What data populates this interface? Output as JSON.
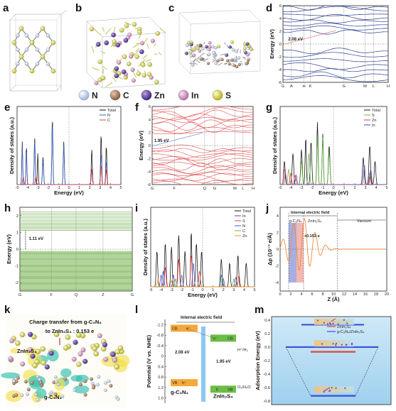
{
  "panel_labels": {
    "a": "a",
    "b": "b",
    "c": "c",
    "d": "d",
    "e": "e",
    "f": "f",
    "g": "g",
    "h": "h",
    "i": "i",
    "j": "j",
    "k": "k",
    "l": "l",
    "m": "m"
  },
  "atom_legend": [
    {
      "label": "N",
      "color": "#c9d7ee"
    },
    {
      "label": "C",
      "color": "#a8795a"
    },
    {
      "label": "Zn",
      "color": "#5b3a98"
    },
    {
      "label": "In",
      "color": "#d9a2c9"
    },
    {
      "label": "S",
      "color": "#e4e256"
    }
  ],
  "band_d": {
    "ylabel": "Energy (eV)",
    "yticks": [
      "6",
      "4",
      "2",
      "0",
      "-2",
      "-4",
      "-6"
    ],
    "kpoints": [
      "G",
      "A",
      "H",
      "K",
      "G",
      "M",
      "L",
      "H"
    ],
    "gap": "2.08 eV",
    "line_color": "#2b3d8f",
    "ylim": [
      -6,
      6
    ]
  },
  "band_f": {
    "ylabel": "Energy (eV)",
    "yticks": [
      "6",
      "4",
      "2",
      "0",
      "-2",
      "-4",
      "-6"
    ],
    "kpoints": [
      "G",
      "F",
      "Q",
      "G",
      "M",
      "L",
      "H"
    ],
    "gap": "1.95 eV",
    "line_color": "#e05050",
    "ylim": [
      -6,
      6
    ]
  },
  "band_h": {
    "ylabel": "Energy (eV)",
    "yticks": [
      "2",
      "1",
      "0",
      "-1",
      "-2"
    ],
    "kpoints": [
      "G",
      "F",
      "Q",
      "Z",
      "G"
    ],
    "gap": "1.11 eV",
    "line_color": "#63a83a",
    "ylim": [
      -2.5,
      2.5
    ]
  },
  "dos_e": {
    "ylabel": "Density of states (a.u.)",
    "xlabel": "Energy (eV)",
    "xticks": [
      "-5",
      "-4",
      "-3",
      "-2",
      "-1",
      "0",
      "1",
      "2",
      "3",
      "4",
      "5"
    ],
    "legend": [
      {
        "label": "Total",
        "color": "#111111"
      },
      {
        "label": "N",
        "color": "#3a5fc8"
      },
      {
        "label": "C",
        "color": "#e04040"
      }
    ]
  },
  "dos_g": {
    "ylabel": "Density of states (a.u.)",
    "xlabel": "Energy (eV)",
    "xticks": [
      "-5",
      "-4",
      "-3",
      "-2",
      "-1",
      "0",
      "1",
      "2",
      "3",
      "4",
      "5"
    ],
    "legend": [
      {
        "label": "Total",
        "color": "#111111"
      },
      {
        "label": "S",
        "color": "#6bbd45"
      },
      {
        "label": "Zn",
        "color": "#e04040"
      },
      {
        "label": "In",
        "color": "#5b3fb0"
      }
    ]
  },
  "dos_i": {
    "ylabel": "Density of states (a.u.)",
    "xlabel": "Energy (eV)",
    "xticks": [
      "-5",
      "-4",
      "-3",
      "-2",
      "-1",
      "0",
      "1",
      "2",
      "3",
      "4",
      "5"
    ],
    "legend": [
      {
        "label": "Total",
        "color": "#111111"
      },
      {
        "label": "In",
        "color": "#5b3fb0"
      },
      {
        "label": "S",
        "color": "#e04040"
      },
      {
        "label": "N",
        "color": "#3a5fc8"
      },
      {
        "label": "C",
        "color": "#6bbd45"
      },
      {
        "label": "Zn",
        "color": "#ff8c1a"
      }
    ]
  },
  "charge_j": {
    "ylabel": "Δρ (10⁻³ e/Å)",
    "xlabel": "Z (Å)",
    "xticks": [
      "0",
      "2",
      "4",
      "6",
      "8",
      "10",
      "12",
      "14",
      "16",
      "18",
      "20"
    ],
    "yticks": [
      "4",
      "2",
      "0",
      "-2",
      "-4"
    ],
    "field_label": "Internal electric field",
    "region1": "g-C₃N₄",
    "region2": "ZnIn₂S₄",
    "region3": "Vacuum",
    "annotation": "+0.153 e"
  },
  "panel_k": {
    "title_line1": "Charge transfer from g-C₃N₄",
    "title_line2": "to ZnIn₂S₄ : 0.153 e",
    "upper_label": "ZnIn₂S₄",
    "lower_label": "g-C₃N₄"
  },
  "panel_l": {
    "field_label": "Internal electric field",
    "ylabel": "Potential (V vs. NHE)",
    "yticks": [
      "-1.2",
      "-0.8",
      "-0.4",
      "0",
      "0.4",
      "0.8",
      "1.2",
      "1.6"
    ],
    "cb": "CB",
    "vb": "VB",
    "gap_left": "2.08 eV",
    "gap_right": "1.95 eV",
    "h2": "H⁺/H₂",
    "o2": "O₂/H₂O",
    "left_material": "g-C₃N₄",
    "right_material": "ZnIn₂S₄",
    "electron": "e⁻",
    "hole": "h⁺",
    "hole2": "h"
  },
  "panel_m": {
    "ylabel": "Adsorption Energy (eV)",
    "yticks": [
      "0.4",
      "0.2",
      "0.0",
      "-0.2",
      "-0.4",
      "-0.6",
      "-0.8"
    ],
    "legend": [
      {
        "label": "g-C₃N₄",
        "color": "#3c4fd6"
      },
      {
        "label": "ZnIn₂S₄",
        "color": "#e0453a"
      },
      {
        "label": "g-C₃N₄/ZnIn₂S₄",
        "color": "#3c4fd6"
      }
    ]
  }
}
